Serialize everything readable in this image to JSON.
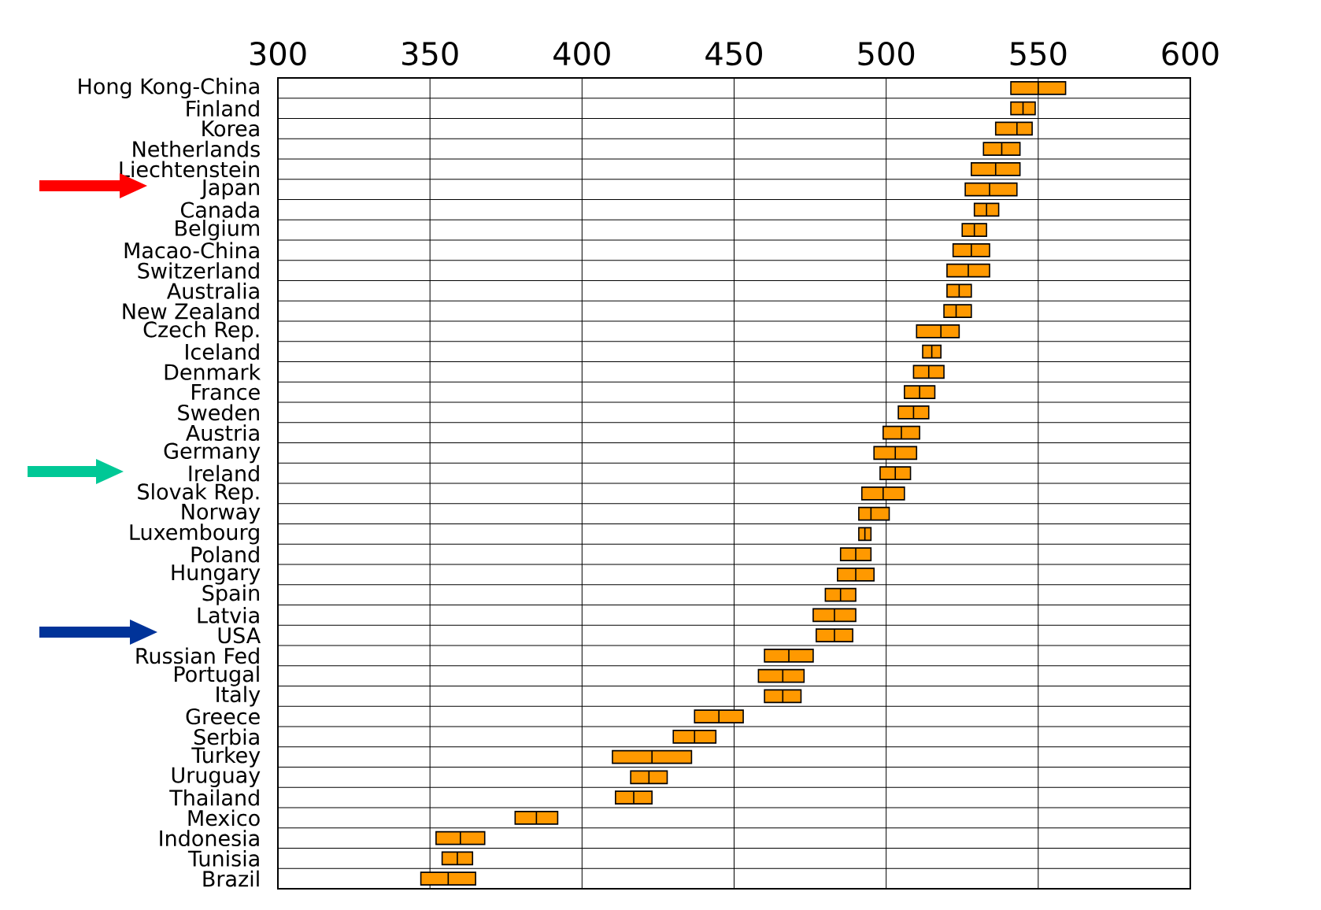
{
  "chart_data": {
    "type": "box",
    "orientation": "horizontal",
    "color": "#ff9900",
    "grid": true,
    "categories": [
      "Hong Kong-China",
      "Finland",
      "Korea",
      "Netherlands",
      "Liechtenstein",
      "Japan",
      "Canada",
      "Belgium",
      "Macao-China",
      "Switzerland",
      "Australia",
      "New Zealand",
      "Czech Rep.",
      "Iceland",
      "Denmark",
      "France",
      "Sweden",
      "Austria",
      "Germany",
      "Ireland",
      "Slovak Rep.",
      "Norway",
      "Luxembourg",
      "Poland",
      "Hungary",
      "Spain",
      "Latvia",
      "USA",
      "Russian Fed",
      "Portugal",
      "Italy",
      "Greece",
      "Serbia",
      "Turkey",
      "Uruguay",
      "Thailand",
      "Mexico",
      "Indonesia",
      "Tunisia",
      "Brazil"
    ],
    "boxes": [
      {
        "low": 541,
        "q1": 541,
        "median": 550,
        "q3": 559,
        "high": 559
      },
      {
        "low": 541,
        "q1": 541,
        "median": 545,
        "q3": 549,
        "high": 549
      },
      {
        "low": 536,
        "q1": 536,
        "median": 543,
        "q3": 548,
        "high": 548
      },
      {
        "low": 532,
        "q1": 532,
        "median": 538,
        "q3": 544,
        "high": 544
      },
      {
        "low": 528,
        "q1": 528,
        "median": 536,
        "q3": 544,
        "high": 544
      },
      {
        "low": 526,
        "q1": 526,
        "median": 534,
        "q3": 543,
        "high": 543
      },
      {
        "low": 529,
        "q1": 529,
        "median": 533,
        "q3": 537,
        "high": 537
      },
      {
        "low": 525,
        "q1": 525,
        "median": 529,
        "q3": 533,
        "high": 533
      },
      {
        "low": 522,
        "q1": 522,
        "median": 528,
        "q3": 534,
        "high": 534
      },
      {
        "low": 520,
        "q1": 520,
        "median": 527,
        "q3": 534,
        "high": 534
      },
      {
        "low": 520,
        "q1": 520,
        "median": 524,
        "q3": 528,
        "high": 528
      },
      {
        "low": 519,
        "q1": 519,
        "median": 523,
        "q3": 528,
        "high": 528
      },
      {
        "low": 510,
        "q1": 510,
        "median": 518,
        "q3": 524,
        "high": 524
      },
      {
        "low": 512,
        "q1": 512,
        "median": 515,
        "q3": 518,
        "high": 518
      },
      {
        "low": 509,
        "q1": 509,
        "median": 514,
        "q3": 519,
        "high": 519
      },
      {
        "low": 506,
        "q1": 506,
        "median": 511,
        "q3": 516,
        "high": 516
      },
      {
        "low": 504,
        "q1": 504,
        "median": 509,
        "q3": 514,
        "high": 514
      },
      {
        "low": 499,
        "q1": 499,
        "median": 505,
        "q3": 511,
        "high": 511
      },
      {
        "low": 496,
        "q1": 496,
        "median": 503,
        "q3": 510,
        "high": 510
      },
      {
        "low": 498,
        "q1": 498,
        "median": 503,
        "q3": 508,
        "high": 508
      },
      {
        "low": 492,
        "q1": 492,
        "median": 499,
        "q3": 506,
        "high": 506
      },
      {
        "low": 491,
        "q1": 491,
        "median": 495,
        "q3": 501,
        "high": 501
      },
      {
        "low": 491,
        "q1": 491,
        "median": 493,
        "q3": 495,
        "high": 495
      },
      {
        "low": 485,
        "q1": 485,
        "median": 490,
        "q3": 495,
        "high": 495
      },
      {
        "low": 484,
        "q1": 484,
        "median": 490,
        "q3": 496,
        "high": 496
      },
      {
        "low": 480,
        "q1": 480,
        "median": 485,
        "q3": 490,
        "high": 490
      },
      {
        "low": 476,
        "q1": 476,
        "median": 483,
        "q3": 490,
        "high": 490
      },
      {
        "low": 477,
        "q1": 477,
        "median": 483,
        "q3": 489,
        "high": 489
      },
      {
        "low": 460,
        "q1": 460,
        "median": 468,
        "q3": 476,
        "high": 476
      },
      {
        "low": 458,
        "q1": 458,
        "median": 466,
        "q3": 473,
        "high": 473
      },
      {
        "low": 460,
        "q1": 460,
        "median": 466,
        "q3": 472,
        "high": 472
      },
      {
        "low": 437,
        "q1": 437,
        "median": 445,
        "q3": 453,
        "high": 453
      },
      {
        "low": 430,
        "q1": 430,
        "median": 437,
        "q3": 444,
        "high": 444
      },
      {
        "low": 410,
        "q1": 410,
        "median": 423,
        "q3": 436,
        "high": 436
      },
      {
        "low": 416,
        "q1": 416,
        "median": 422,
        "q3": 428,
        "high": 428
      },
      {
        "low": 411,
        "q1": 411,
        "median": 417,
        "q3": 423,
        "high": 423
      },
      {
        "low": 378,
        "q1": 378,
        "median": 385,
        "q3": 392,
        "high": 392
      },
      {
        "low": 352,
        "q1": 352,
        "median": 360,
        "q3": 368,
        "high": 368
      },
      {
        "low": 354,
        "q1": 354,
        "median": 359,
        "q3": 364,
        "high": 364
      },
      {
        "low": 347,
        "q1": 347,
        "median": 356,
        "q3": 365,
        "high": 365
      }
    ],
    "xlim": [
      300,
      600
    ],
    "xticks": [
      300,
      350,
      400,
      450,
      500,
      550,
      600
    ]
  }
}
